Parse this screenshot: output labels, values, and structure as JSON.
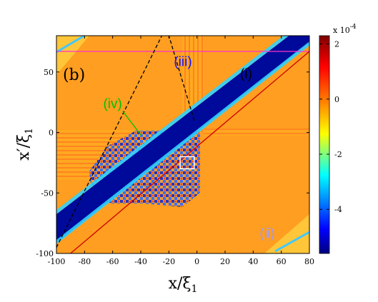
{
  "chart_data": {
    "type": "heatmap",
    "panel_label": "(b)",
    "xlabel_main": "x/ξ",
    "xlabel_sub": "1",
    "ylabel_main": "x′/ξ",
    "ylabel_sub": "1",
    "xlim": [
      -100,
      80
    ],
    "ylim": [
      -100,
      80
    ],
    "x_ticks": [
      -100,
      -80,
      -60,
      -40,
      -20,
      0,
      20,
      40,
      60,
      80
    ],
    "y_ticks": [
      -100,
      -50,
      0,
      50
    ],
    "colorbar": {
      "exponent_label": "x 10",
      "exponent_power": "-4",
      "range": [
        -5.6,
        2.3
      ],
      "ticks": [
        2,
        0,
        -2,
        -4
      ],
      "colormap": [
        "#00007f",
        "#0000ff",
        "#00ffff",
        "#ffff00",
        "#ff7f00",
        "#ff0000",
        "#7f0000"
      ]
    },
    "background_value": 0.6,
    "diagonal_band_value": -5.0,
    "annotations": [
      {
        "label": "(i)",
        "x": 35,
        "y": 45,
        "color": "#000000"
      },
      {
        "label": "(ii)",
        "x": 50,
        "y": -87,
        "color": "#9a9aff"
      },
      {
        "label": "(iii)",
        "x": -10,
        "y": 55,
        "color": "#1010ff"
      },
      {
        "label": "(iv)",
        "x": -60,
        "y": 20,
        "color": "#00c000"
      }
    ],
    "reference_lines": [
      {
        "kind": "horizontal",
        "y": 67,
        "color": "#ff33cc"
      },
      {
        "kind": "solid",
        "from": [
          -90,
          -100
        ],
        "to": [
          80,
          67
        ],
        "color": "#cc0000"
      },
      {
        "kind": "dashed",
        "from": [
          -100,
          -95
        ],
        "to": [
          -25,
          80
        ],
        "color": "#000000"
      },
      {
        "kind": "dashed",
        "from": [
          -2,
          10
        ],
        "to": [
          -20,
          80
        ],
        "color": "#000000"
      }
    ],
    "highlight_box": {
      "x": [
        -12,
        -2
      ],
      "y": [
        -30,
        -20
      ],
      "color": "#ffffff"
    }
  }
}
